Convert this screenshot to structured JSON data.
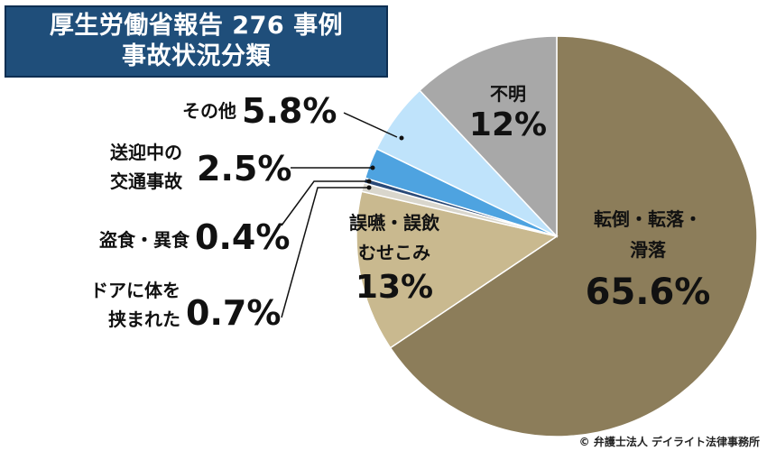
{
  "title": {
    "line1": "厚生労働省報告 276 事例",
    "line2": "事故状況分類"
  },
  "credit": "© 弁護士法人 デイライト法律事務所",
  "colors": {
    "title_bg": "#1f4e7a",
    "falls": "#8c7d5a",
    "choking": "#c9b98f",
    "door": "#d9d6cc",
    "theft_eating": "#2a4a78",
    "traffic": "#4ea3e0",
    "other": "#bfe3fb",
    "unknown": "#a8a8a8"
  },
  "chart_data": {
    "type": "pie",
    "slices": [
      {
        "key": "falls",
        "label_lines": [
          "転倒・転落・",
          "滑落"
        ],
        "value_text": "65.6%",
        "value": 65.6
      },
      {
        "key": "choking",
        "label_lines": [
          "誤嚥・誤飲",
          "むせこみ"
        ],
        "value_text": "13%",
        "value": 13
      },
      {
        "key": "door",
        "label_lines": [
          "ドアに体を",
          "挟まれた"
        ],
        "value_text": "0.7%",
        "value": 0.7
      },
      {
        "key": "theft_eating",
        "label_lines": [
          "盗食・異食"
        ],
        "value_text": "0.4%",
        "value": 0.4
      },
      {
        "key": "traffic",
        "label_lines": [
          "送迎中の",
          "交通事故"
        ],
        "value_text": "2.5%",
        "value": 2.5
      },
      {
        "key": "other",
        "label_lines": [
          "その他"
        ],
        "value_text": "5.8%",
        "value": 5.8
      },
      {
        "key": "unknown",
        "label_lines": [
          "不明"
        ],
        "value_text": "12%",
        "value": 12
      }
    ]
  }
}
